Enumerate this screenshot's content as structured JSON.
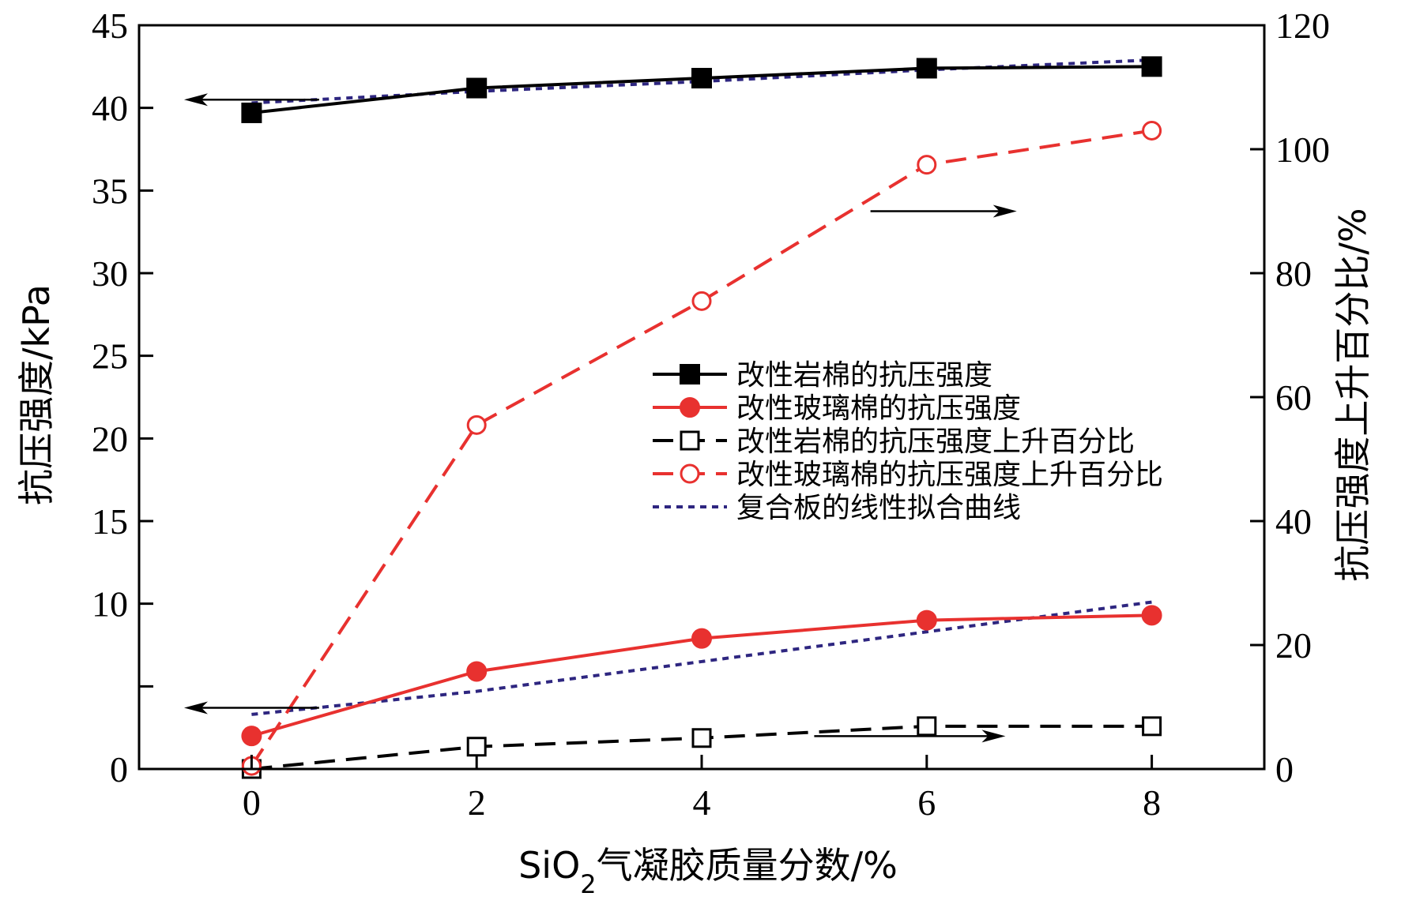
{
  "chart_data": {
    "type": "line",
    "xlabel": {
      "prefix": "SiO",
      "sub": "2",
      "suffix": "气凝胶质量分数/%"
    },
    "ylabel_left": "抗压强度/kPa",
    "ylabel_right": "抗压强度上升百分比/%",
    "xlim": [
      -1,
      9
    ],
    "ylim_left": [
      0,
      45
    ],
    "ylim_right": [
      0,
      120
    ],
    "x_ticks": [
      0,
      2,
      4,
      6,
      8
    ],
    "y_ticks_left": [
      0,
      5,
      10,
      15,
      20,
      25,
      30,
      35,
      40,
      45
    ],
    "y_tick_labels_left": [
      "0",
      "",
      "10",
      "15",
      "20",
      "25",
      "30",
      "35",
      "40",
      "45"
    ],
    "y_ticks_right": [
      0,
      20,
      40,
      60,
      80,
      100,
      120
    ],
    "grid": false,
    "legend_position": "center-right",
    "series": [
      {
        "name": "改性岩棉的抗压强度",
        "axis": "left",
        "x": [
          0,
          2,
          4,
          6,
          8
        ],
        "values": [
          39.7,
          41.2,
          41.8,
          42.4,
          42.5
        ],
        "color": "#000000",
        "dash": "solid",
        "marker": "filled-square"
      },
      {
        "name": "改性玻璃棉的抗压强度",
        "axis": "left",
        "x": [
          0,
          2,
          4,
          6,
          8
        ],
        "values": [
          2.0,
          5.9,
          7.9,
          9.0,
          9.3
        ],
        "color": "#e8312f",
        "dash": "solid",
        "marker": "filled-circle"
      },
      {
        "name": "改性岩棉的抗压强度上升百分比",
        "axis": "right",
        "x": [
          0,
          2,
          4,
          6,
          8
        ],
        "values": [
          0,
          3.6,
          5.0,
          6.9,
          6.9
        ],
        "color": "#000000",
        "dash": "dashed",
        "marker": "open-square"
      },
      {
        "name": "改性玻璃棉的抗压强度上升百分比",
        "axis": "right",
        "x": [
          0,
          2,
          4,
          6,
          8
        ],
        "values": [
          0.5,
          55.5,
          75.5,
          97.5,
          103
        ],
        "color": "#e8312f",
        "dash": "dashed",
        "marker": "open-circle"
      },
      {
        "name": "复合板的线性拟合曲线",
        "axis": "left",
        "x": [
          0,
          2,
          4,
          6,
          8
        ],
        "values": [
          40.3,
          41.0,
          41.6,
          42.3,
          42.9
        ],
        "color": "#2e2680",
        "dash": "dotted",
        "marker": "none"
      },
      {
        "axis": "left",
        "x": [
          0,
          2,
          4,
          6,
          8
        ],
        "values": [
          3.3,
          4.7,
          6.5,
          8.3,
          10.1
        ],
        "color": "#2e2680",
        "dash": "dotted",
        "marker": "none"
      }
    ],
    "annotations": [
      {
        "type": "arrow",
        "direction": "left",
        "axis": "left",
        "from_x": 0.6,
        "to_x": -0.6,
        "y": 40.5
      },
      {
        "type": "arrow",
        "direction": "left",
        "axis": "left",
        "from_x": 0.6,
        "to_x": -0.6,
        "y": 3.7
      },
      {
        "type": "arrow",
        "direction": "right",
        "axis": "right",
        "from_x": 5.5,
        "to_x": 6.8,
        "y": 90
      },
      {
        "type": "arrow",
        "direction": "right",
        "axis": "right",
        "from_x": 5.0,
        "to_x": 6.7,
        "y": 5.3
      }
    ]
  }
}
